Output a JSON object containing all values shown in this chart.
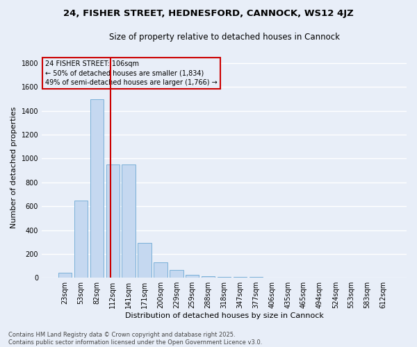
{
  "title": "24, FISHER STREET, HEDNESFORD, CANNOCK, WS12 4JZ",
  "subtitle": "Size of property relative to detached houses in Cannock",
  "xlabel": "Distribution of detached houses by size in Cannock",
  "ylabel": "Number of detached properties",
  "categories": [
    "23sqm",
    "53sqm",
    "82sqm",
    "112sqm",
    "141sqm",
    "171sqm",
    "200sqm",
    "229sqm",
    "259sqm",
    "288sqm",
    "318sqm",
    "347sqm",
    "377sqm",
    "406sqm",
    "435sqm",
    "465sqm",
    "494sqm",
    "524sqm",
    "553sqm",
    "583sqm",
    "612sqm"
  ],
  "values": [
    40,
    650,
    1500,
    950,
    950,
    295,
    130,
    65,
    25,
    10,
    5,
    5,
    5,
    0,
    0,
    0,
    0,
    0,
    0,
    0,
    0
  ],
  "bar_color": "#c5d8f0",
  "bar_edge_color": "#7ab0d8",
  "vline_x": 2.85,
  "vline_color": "#cc0000",
  "annotation_text": "24 FISHER STREET: 106sqm\n← 50% of detached houses are smaller (1,834)\n49% of semi-detached houses are larger (1,766) →",
  "annotation_box_color": "#cc0000",
  "ylim": [
    0,
    1850
  ],
  "yticks": [
    0,
    200,
    400,
    600,
    800,
    1000,
    1200,
    1400,
    1600,
    1800
  ],
  "background_color": "#e8eef8",
  "grid_color": "#ffffff",
  "footer_line1": "Contains HM Land Registry data © Crown copyright and database right 2025.",
  "footer_line2": "Contains public sector information licensed under the Open Government Licence v3.0.",
  "title_fontsize": 9.5,
  "subtitle_fontsize": 8.5,
  "xlabel_fontsize": 8,
  "ylabel_fontsize": 8,
  "tick_fontsize": 7,
  "annotation_fontsize": 7,
  "footer_fontsize": 6
}
